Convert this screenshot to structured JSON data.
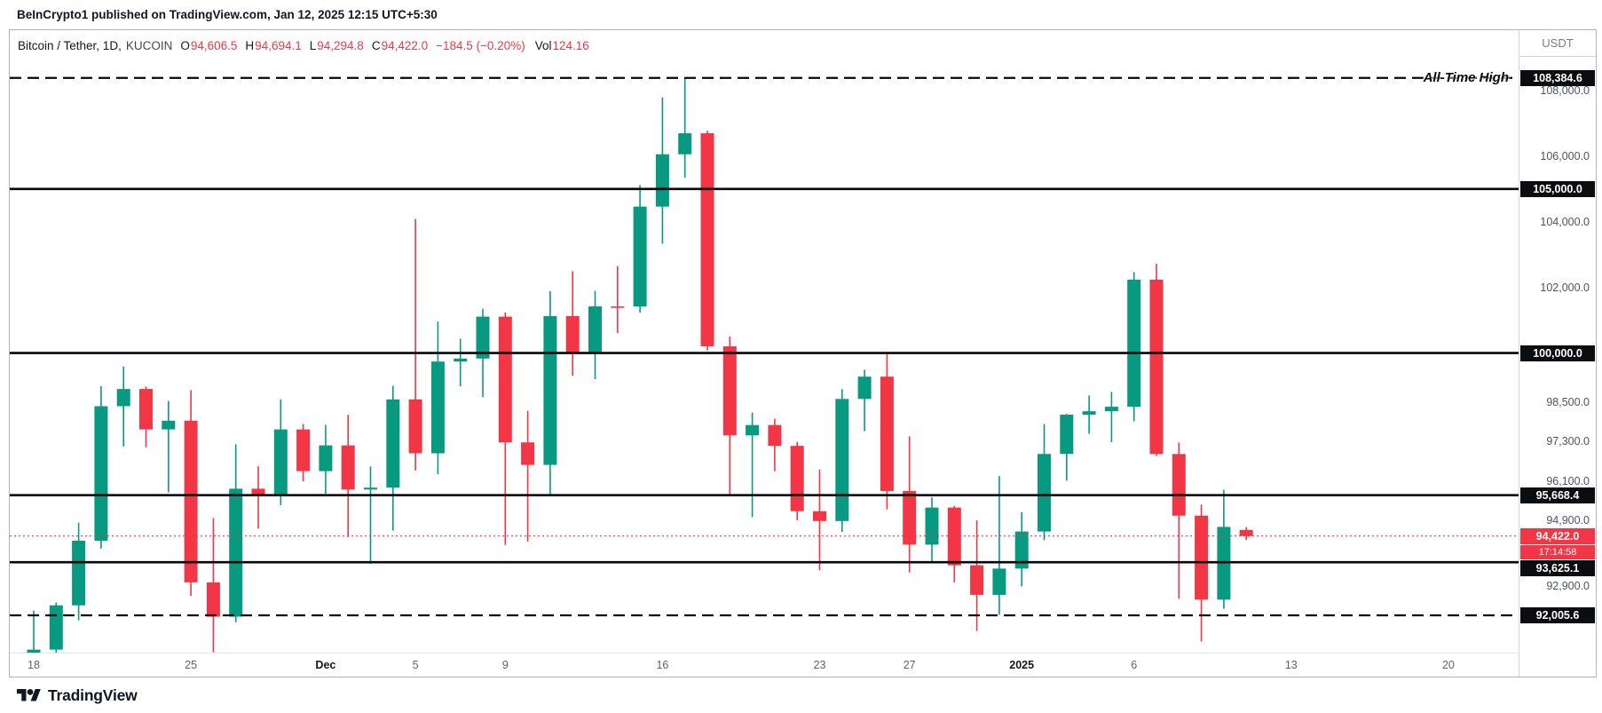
{
  "header": {
    "attribution": "BeInCrypto1 published on TradingView.com, Jan 12, 2025 12:15 UTC+5:30"
  },
  "symbol_row": {
    "symbol": "Bitcoin / Tether, 1D,",
    "exchange": "KUCOIN",
    "o_label": "O",
    "o_value": "94,606.5",
    "h_label": "H",
    "h_value": "94,694.1",
    "l_label": "L",
    "l_value": "94,294.8",
    "c_label": "C",
    "c_value": "94,422.0",
    "change": "−184.5 (−0.20%)",
    "vol_label": "Vol",
    "vol_value": "124.16"
  },
  "footer": {
    "brand": "TradingView"
  },
  "chart_data": {
    "type": "candlestick",
    "title": "Bitcoin / Tether, 1D, KUCOIN",
    "symbol": "BTC/USDT",
    "exchange": "KUCOIN",
    "interval": "1D",
    "up_color": "#089981",
    "down_color": "#f23645",
    "level_line_color": "#07070b",
    "ohlc_format": [
      "date",
      "open",
      "high",
      "low",
      "close"
    ],
    "candles": [
      [
        "2024-11-18",
        90560,
        92150,
        90370,
        90960
      ],
      [
        "2024-11-19",
        90960,
        92400,
        90420,
        92310
      ],
      [
        "2024-11-20",
        92310,
        94831,
        91850,
        94280
      ],
      [
        "2024-11-21",
        94280,
        98988,
        94040,
        98380
      ],
      [
        "2024-11-22",
        98380,
        99588,
        97152,
        98904
      ],
      [
        "2024-11-23",
        98904,
        98980,
        97128,
        97672
      ],
      [
        "2024-11-24",
        97672,
        98540,
        95753,
        97938
      ],
      [
        "2024-11-25",
        97938,
        98871,
        92600,
        93010
      ],
      [
        "2024-11-26",
        93010,
        94973,
        90880,
        91965
      ],
      [
        "2024-11-27",
        91965,
        97219,
        91792,
        95865
      ],
      [
        "2024-11-28",
        95865,
        96548,
        94648,
        95640
      ],
      [
        "2024-11-29",
        95640,
        98588,
        95364,
        97672
      ],
      [
        "2024-11-30",
        97672,
        97836,
        96086,
        96400
      ],
      [
        "2024-12-01",
        96400,
        97813,
        95712,
        97185
      ],
      [
        "2024-12-02",
        97185,
        98119,
        94395,
        95840
      ],
      [
        "2024-12-03",
        95840,
        96546,
        93578,
        95897
      ],
      [
        "2024-12-04",
        95897,
        99000,
        94587,
        98587
      ],
      [
        "2024-12-05",
        98587,
        104088,
        96420,
        96945
      ],
      [
        "2024-12-06",
        96945,
        100960,
        96306,
        99740
      ],
      [
        "2024-12-07",
        99740,
        100441,
        98983,
        99832
      ],
      [
        "2024-12-08",
        99832,
        101351,
        98656,
        101109
      ],
      [
        "2024-12-09",
        101109,
        101236,
        94150,
        97276
      ],
      [
        "2024-12-10",
        97276,
        98237,
        94254,
        96590
      ],
      [
        "2024-12-11",
        96590,
        101888,
        95689,
        101125
      ],
      [
        "2024-12-12",
        101125,
        102495,
        99311,
        100022
      ],
      [
        "2024-12-13",
        100022,
        101895,
        99205,
        101421
      ],
      [
        "2024-12-14",
        101421,
        102650,
        100609,
        101417
      ],
      [
        "2024-12-15",
        101417,
        105120,
        101234,
        104463
      ],
      [
        "2024-12-16",
        104463,
        107793,
        103333,
        106058
      ],
      [
        "2024-12-17",
        106058,
        108384.6,
        105343,
        106698
      ],
      [
        "2024-12-18",
        106698,
        106778,
        100081,
        100204
      ],
      [
        "2024-12-19",
        100204,
        100500,
        95672,
        97490
      ],
      [
        "2024-12-20",
        97490,
        98185,
        95000,
        97805
      ],
      [
        "2024-12-21",
        97805,
        98000,
        96400,
        97170
      ],
      [
        "2024-12-22",
        97170,
        97290,
        94900,
        95180
      ],
      [
        "2024-12-23",
        95180,
        96450,
        93380,
        94880
      ],
      [
        "2024-12-24",
        94880,
        98900,
        94550,
        98600
      ],
      [
        "2024-12-25",
        98600,
        99490,
        97620,
        99280
      ],
      [
        "2024-12-26",
        99280,
        99963,
        95234,
        95795
      ],
      [
        "2024-12-27",
        95795,
        97462,
        93310,
        94160
      ],
      [
        "2024-12-28",
        94160,
        95600,
        93610,
        95290
      ],
      [
        "2024-12-29",
        95290,
        95340,
        93009,
        93530
      ],
      [
        "2024-12-30",
        93530,
        94900,
        91530,
        92630
      ],
      [
        "2024-12-31",
        92630,
        96250,
        92020,
        93430
      ],
      [
        "2025-01-01",
        93430,
        95151,
        92888,
        94560
      ],
      [
        "2025-01-02",
        94560,
        97839,
        94297,
        96924
      ],
      [
        "2025-01-03",
        96924,
        98144,
        96108,
        98120
      ],
      [
        "2025-01-04",
        98120,
        98705,
        97538,
        98226
      ],
      [
        "2025-01-05",
        98226,
        98814,
        97286,
        98363
      ],
      [
        "2025-01-06",
        98363,
        102470,
        97920,
        102235
      ],
      [
        "2025-01-07",
        102235,
        102724,
        96867,
        96922
      ],
      [
        "2025-01-08",
        96922,
        97268,
        92508,
        95043
      ],
      [
        "2025-01-09",
        95043,
        95382,
        91203,
        92484
      ],
      [
        "2025-01-10",
        92484,
        95836,
        92206,
        94701
      ],
      [
        "2025-01-11",
        94606.5,
        94694.1,
        94294.8,
        94422.0
      ]
    ],
    "levels": [
      {
        "price": 108384.6,
        "label": "108,384.6",
        "style": "dashed"
      },
      {
        "price": 105000,
        "label": "105,000.0",
        "style": "solid"
      },
      {
        "price": 100000,
        "label": "100,000.0",
        "style": "solid"
      },
      {
        "price": 95668.4,
        "label": "95,668.4",
        "style": "solid"
      },
      {
        "price": 93625.1,
        "label": "93,625.1",
        "style": "solid"
      },
      {
        "price": 92005.6,
        "label": "92,005.6",
        "style": "dashed"
      }
    ],
    "current_price": {
      "price": 94422.0,
      "label": "94,422.0",
      "countdown": "17:14:58"
    },
    "annotations": [
      {
        "text": "All-Time High",
        "price": 108384.6
      }
    ],
    "x_axis": {
      "ticks": [
        {
          "i": 0,
          "label": "18"
        },
        {
          "i": 7,
          "label": "25"
        },
        {
          "i": 13,
          "label": "Dec",
          "major": true
        },
        {
          "i": 17,
          "label": "5"
        },
        {
          "i": 21,
          "label": "9"
        },
        {
          "i": 28,
          "label": "16"
        },
        {
          "i": 35,
          "label": "23"
        },
        {
          "i": 39,
          "label": "27"
        },
        {
          "i": 44,
          "label": "2025",
          "major": true
        },
        {
          "i": 49,
          "label": "6"
        },
        {
          "i": 56,
          "label": "13"
        },
        {
          "i": 63,
          "label": "20"
        }
      ]
    },
    "y_axis": {
      "unit": "USDT",
      "visible_range": [
        90868,
        109840
      ],
      "ticks": [
        {
          "price": 108000,
          "label": "108,000.0"
        },
        {
          "price": 106000,
          "label": "106,000.0"
        },
        {
          "price": 104000,
          "label": "104,000.0"
        },
        {
          "price": 102000,
          "label": "102,000.0"
        },
        {
          "price": 98500,
          "label": "98,500.0"
        },
        {
          "price": 97300,
          "label": "97,300.0"
        },
        {
          "price": 96100,
          "label": "96,100.0"
        },
        {
          "price": 94900,
          "label": "94,900.0"
        },
        {
          "price": 92900,
          "label": "92,900.0"
        }
      ]
    }
  }
}
